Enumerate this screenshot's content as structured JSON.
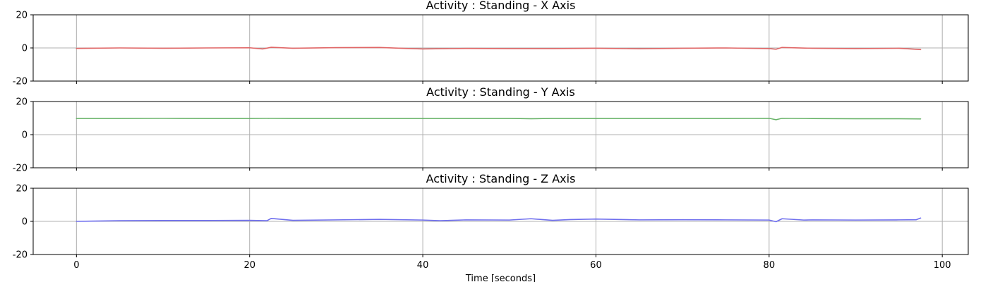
{
  "chart_data": [
    {
      "type": "line",
      "title": "Activity : Standing - X Axis",
      "xlabel": "",
      "ylabel": "",
      "xlim": [
        -5,
        103
      ],
      "ylim": [
        -20,
        20
      ],
      "xticks": [
        0,
        20,
        40,
        60,
        80,
        100
      ],
      "yticks": [
        -20,
        0,
        20
      ],
      "xtick_labels_visible": false,
      "grid": true,
      "color": "#e06666",
      "series": [
        {
          "x": [
            0,
            5,
            10,
            15,
            20,
            21.5,
            22.5,
            25,
            30,
            35,
            38,
            40,
            45,
            50,
            55,
            60,
            65,
            70,
            75,
            80,
            80.8,
            81.5,
            85,
            90,
            95,
            97.5
          ],
          "y": [
            -0.3,
            0,
            -0.2,
            0,
            0.1,
            -0.6,
            0.4,
            -0.2,
            0.2,
            0.3,
            -0.3,
            -0.6,
            -0.3,
            -0.4,
            -0.4,
            -0.2,
            -0.5,
            -0.2,
            0,
            -0.4,
            -0.8,
            0.3,
            -0.2,
            -0.4,
            -0.2,
            -1.0
          ]
        }
      ]
    },
    {
      "type": "line",
      "title": "Activity : Standing - Y Axis",
      "xlabel": "",
      "ylabel": "",
      "xlim": [
        -5,
        103
      ],
      "ylim": [
        -20,
        20
      ],
      "xticks": [
        0,
        20,
        40,
        60,
        80,
        100
      ],
      "yticks": [
        -20,
        0,
        20
      ],
      "xtick_labels_visible": false,
      "grid": true,
      "color": "#66b266",
      "series": [
        {
          "x": [
            0,
            5,
            10,
            15,
            20,
            22,
            25,
            30,
            35,
            40,
            45,
            50,
            52.5,
            55,
            60,
            65,
            70,
            75,
            80,
            80.8,
            81.5,
            85,
            90,
            95,
            97.5
          ],
          "y": [
            9.8,
            9.8,
            9.9,
            9.8,
            9.8,
            9.9,
            9.8,
            9.8,
            9.8,
            9.8,
            9.8,
            9.8,
            9.6,
            9.8,
            9.8,
            9.8,
            9.8,
            9.8,
            9.9,
            9.0,
            9.9,
            9.7,
            9.6,
            9.6,
            9.5
          ]
        }
      ]
    },
    {
      "type": "line",
      "title": "Activity : Standing - Z Axis",
      "xlabel": "Time [seconds]",
      "ylabel": "",
      "xlim": [
        -5,
        103
      ],
      "ylim": [
        -20,
        20
      ],
      "xticks": [
        0,
        20,
        40,
        60,
        80,
        100
      ],
      "yticks": [
        -20,
        0,
        20
      ],
      "xtick_labels_visible": true,
      "grid": true,
      "color": "#6f6fee",
      "series": [
        {
          "x": [
            0,
            5,
            10,
            15,
            20,
            22,
            22.5,
            25,
            30,
            35,
            40,
            42,
            45,
            50,
            52.5,
            55,
            57,
            60,
            65,
            70,
            75,
            80,
            80.8,
            81.5,
            84,
            85,
            90,
            95,
            97,
            97.5
          ],
          "y": [
            0,
            0.4,
            0.5,
            0.5,
            0.6,
            0.4,
            1.8,
            0.6,
            0.9,
            1.2,
            0.8,
            0.4,
            0.9,
            0.8,
            1.6,
            0.6,
            1.1,
            1.4,
            0.9,
            1.0,
            0.9,
            0.8,
            -0.2,
            1.6,
            0.8,
            0.9,
            0.8,
            0.9,
            1.0,
            2.0
          ]
        }
      ]
    }
  ]
}
